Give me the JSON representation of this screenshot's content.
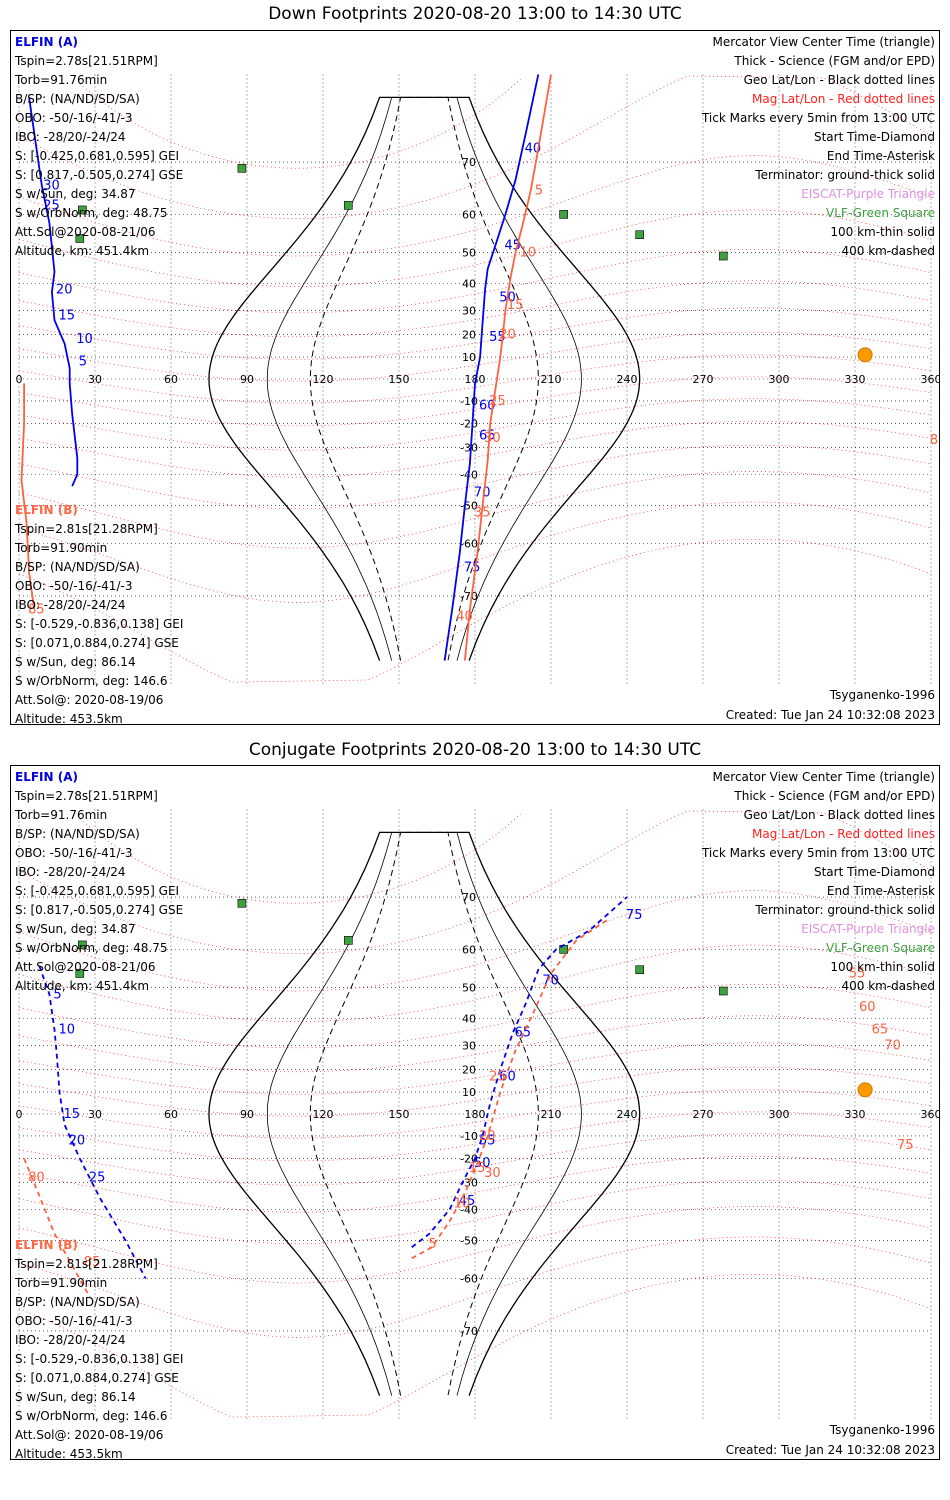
{
  "colors": {
    "elfin_a": "#0000ee",
    "elfin_b": "#ff6040",
    "mag_grid": "#ff2020",
    "geo_grid": "#000000",
    "coast": "#b0b0b0",
    "eiscat": "#e090e0",
    "vlf": "#40a040",
    "sun": "#ff9900"
  },
  "panels": [
    {
      "id": "down",
      "title": "Down Footprints 2020-08-20 13:00 to 14:30 UTC",
      "elfin_a": {
        "name": "ELFIN (A)",
        "lines": [
          "Tspin=2.78s[21.51RPM]",
          "Torb=91.76min",
          "B/SP: (NA/ND/SD/SA)",
          "OBO: -50/-16/-41/-3",
          "IBO: -28/20/-24/24",
          "S: [-0.425,0.681,0.595] GEI",
          "S: [0.817,-0.505,0.274] GSE",
          "S w/Sun, deg: 34.87",
          "S w/OrbNorm, deg: 48.75",
          "Att.Sol@2020-08-21/06",
          "Altitude, km: 451.4km"
        ]
      },
      "elfin_b": {
        "name": "ELFIN (B)",
        "lines": [
          "Tspin=2.81s[21.28RPM]",
          "Torb=91.90min",
          "B/SP: (NA/ND/SD/SA)",
          "OBO: -50/-16/-41/-3",
          "IBO: -28/20/-24/24",
          "S: [-0.529,-0.836,0.138] GEI",
          "S: [0.071,0.884,0.274] GSE",
          "S w/Sun, deg: 86.14",
          "S w/OrbNorm, deg: 146.6",
          "Att.Sol@: 2020-08-19/06",
          "Altitude: 453.5km"
        ]
      },
      "legend": [
        {
          "text": "Mercator View Center Time (triangle)",
          "color": "black"
        },
        {
          "text": "Thick - Science (FGM and/or EPD)",
          "color": "black"
        },
        {
          "text": "Geo Lat/Lon - Black dotted lines",
          "color": "black"
        },
        {
          "text": "Mag Lat/Lon - Red dotted lines",
          "color": "red"
        },
        {
          "text": "Tick Marks every 5min from 13:00 UTC",
          "color": "black"
        },
        {
          "text": "Start Time-Diamond",
          "color": "black"
        },
        {
          "text": "End Time-Asterisk",
          "color": "black"
        },
        {
          "text": "Terminator: ground-thick solid",
          "color": "black"
        },
        {
          "text": "EISCAT-Purple Triangle",
          "color": "purple"
        },
        {
          "text": "VLF-Green Square",
          "color": "green"
        },
        {
          "text": "100 km-thin solid",
          "color": "black"
        },
        {
          "text": "400 km-dashed",
          "color": "black"
        }
      ],
      "model": "Tsyganenko-1996",
      "created": "Created: Tue Jan 24 10:32:08 2023"
    },
    {
      "id": "conjugate",
      "title": "Conjugate Footprints 2020-08-20 13:00 to 14:30 UTC",
      "elfin_a": {
        "name": "ELFIN (A)",
        "lines": [
          "Tspin=2.78s[21.51RPM]",
          "Torb=91.76min",
          "B/SP: (NA/ND/SD/SA)",
          "OBO: -50/-16/-41/-3",
          "IBO: -28/20/-24/24",
          "S: [-0.425,0.681,0.595] GEI",
          "S: [0.817,-0.505,0.274] GSE",
          "S w/Sun, deg: 34.87",
          "S w/OrbNorm, deg: 48.75",
          "Att.Sol@2020-08-21/06",
          "Altitude, km: 451.4km"
        ]
      },
      "elfin_b": {
        "name": "ELFIN (B)",
        "lines": [
          "Tspin=2.81s[21.28RPM]",
          "Torb=91.90min",
          "B/SP: (NA/ND/SD/SA)",
          "OBO: -50/-16/-41/-3",
          "IBO: -28/20/-24/24",
          "S: [-0.529,-0.836,0.138] GEI",
          "S: [0.071,0.884,0.274] GSE",
          "S w/Sun, deg: 86.14",
          "S w/OrbNorm, deg: 146.6",
          "Att.Sol@: 2020-08-19/06",
          "Altitude: 453.5km"
        ]
      },
      "legend": [
        {
          "text": "Mercator View Center Time (triangle)",
          "color": "black"
        },
        {
          "text": "Thick - Science (FGM and/or EPD)",
          "color": "black"
        },
        {
          "text": "Geo Lat/Lon - Black dotted lines",
          "color": "black"
        },
        {
          "text": "Mag Lat/Lon - Red dotted lines",
          "color": "red"
        },
        {
          "text": "Tick Marks every 5min from 13:00 UTC",
          "color": "black"
        },
        {
          "text": "Start Time-Diamond",
          "color": "black"
        },
        {
          "text": "End Time-Asterisk",
          "color": "black"
        },
        {
          "text": "Terminator: ground-thick solid",
          "color": "black"
        },
        {
          "text": "EISCAT-Purple Triangle",
          "color": "purple"
        },
        {
          "text": "VLF-Green Square",
          "color": "green"
        },
        {
          "text": "100 km-thin solid",
          "color": "black"
        },
        {
          "text": "400 km-dashed",
          "color": "black"
        }
      ],
      "model": "Tsyganenko-1996",
      "created": "Created: Tue Jan 24 10:32:08 2023"
    }
  ],
  "chart_data": [
    {
      "type": "scatter",
      "title": "Down Footprints 2020-08-20 13:00 to 14:30 UTC",
      "xlabel": "",
      "ylabel": "",
      "xlim": [
        0,
        360
      ],
      "ylim": [
        -80,
        80
      ],
      "x_ticks": [
        0,
        30,
        60,
        90,
        120,
        150,
        180,
        210,
        240,
        270,
        300,
        330,
        360
      ],
      "y_ticks": [
        -70,
        -60,
        -50,
        -40,
        -30,
        -20,
        -10,
        10,
        20,
        30,
        40,
        50,
        60,
        70
      ],
      "grid": true,
      "projection": "mercator",
      "sun": [
        334,
        11
      ],
      "vlf_stations": [
        [
          88,
          69
        ],
        [
          25,
          61
        ],
        [
          24,
          54
        ],
        [
          130,
          62
        ],
        [
          215,
          60
        ],
        [
          245,
          55
        ],
        [
          278,
          49
        ]
      ],
      "series": [
        {
          "name": "ELFIN (A)",
          "track": [
            [
              4,
              78
            ],
            [
              9,
              66
            ],
            [
              12,
              58
            ],
            [
              14,
              44
            ],
            [
              13,
              37
            ],
            [
              14,
              26
            ],
            [
              18,
              16
            ],
            [
              20,
              5
            ],
            [
              20,
              -2
            ],
            [
              21,
              -16
            ],
            [
              23,
              -34
            ],
            [
              23,
              -40
            ],
            [
              21,
              -44
            ]
          ],
          "ticks": [
            [
              30,
              8,
              66
            ],
            [
              25,
              8,
              62
            ],
            [
              20,
              13,
              38
            ],
            [
              15,
              14,
              28
            ],
            [
              10,
              21,
              18
            ],
            [
              5,
              22,
              8
            ]
          ]
        },
        {
          "name": "ELFIN (B)",
          "track": [
            [
              2,
              -2
            ],
            [
              2,
              -20
            ],
            [
              1,
              -42
            ],
            [
              3,
              -55
            ],
            [
              4,
              -66
            ],
            [
              6,
              -72
            ]
          ],
          "ticks": [
            [
              80,
              358,
              -27
            ],
            [
              85,
              2,
              -72
            ]
          ]
        },
        {
          "name": "ELFIN (A) 2nd pass",
          "track": [
            [
              205,
              80
            ],
            [
              200,
              74
            ],
            [
              196,
              67
            ],
            [
              192,
              60
            ],
            [
              188,
              52
            ],
            [
              185,
              45
            ],
            [
              184,
              38
            ],
            [
              183,
              25
            ],
            [
              182,
              10
            ],
            [
              180,
              -2
            ],
            [
              179,
              -20
            ],
            [
              178,
              -36
            ],
            [
              176,
              -50
            ],
            [
              174,
              -62
            ],
            [
              171,
              -72
            ],
            [
              168,
              -78
            ]
          ],
          "ticks": [
            [
              40,
              198,
              72
            ],
            [
              45,
              190,
              52
            ],
            [
              50,
              188,
              35
            ],
            [
              55,
              184,
              19
            ],
            [
              60,
              180,
              -12
            ],
            [
              65,
              180,
              -25
            ],
            [
              70,
              178,
              -46
            ],
            [
              75,
              174,
              -65
            ]
          ]
        },
        {
          "name": "ELFIN (B) 2nd pass",
          "track": [
            [
              210,
              80
            ],
            [
              205,
              72
            ],
            [
              202,
              65
            ],
            [
              199,
              58
            ],
            [
              196,
              50
            ],
            [
              194,
              42
            ],
            [
              192,
              30
            ],
            [
              191,
              20
            ],
            [
              190,
              10
            ],
            [
              188,
              -5
            ],
            [
              186,
              -20
            ],
            [
              185,
              -35
            ],
            [
              183,
              -50
            ],
            [
              181,
              -62
            ],
            [
              178,
              -72
            ],
            [
              176,
              -78
            ]
          ],
          "ticks": [
            [
              5,
              202,
              65
            ],
            [
              10,
              196,
              50
            ],
            [
              15,
              191,
              32
            ],
            [
              20,
              188,
              20
            ],
            [
              25,
              184,
              -10
            ],
            [
              30,
              182,
              -26
            ],
            [
              35,
              178,
              -52
            ],
            [
              40,
              171,
              -73
            ]
          ]
        }
      ]
    },
    {
      "type": "scatter",
      "title": "Conjugate Footprints 2020-08-20 13:00 to 14:30 UTC",
      "xlabel": "",
      "ylabel": "",
      "xlim": [
        0,
        360
      ],
      "ylim": [
        -80,
        80
      ],
      "x_ticks": [
        0,
        30,
        60,
        90,
        120,
        150,
        180,
        210,
        240,
        270,
        300,
        330,
        360
      ],
      "y_ticks": [
        -70,
        -60,
        -50,
        -40,
        -30,
        -20,
        -10,
        10,
        20,
        30,
        40,
        50,
        60,
        70
      ],
      "grid": true,
      "projection": "mercator",
      "sun": [
        334,
        11
      ],
      "vlf_stations": [
        [
          88,
          69
        ],
        [
          25,
          61
        ],
        [
          24,
          54
        ],
        [
          130,
          62
        ],
        [
          215,
          60
        ],
        [
          245,
          55
        ],
        [
          278,
          49
        ]
      ],
      "series": [
        {
          "name": "ELFIN (A)",
          "track": [
            [
              8,
              56
            ],
            [
              12,
              48
            ],
            [
              14,
              36
            ],
            [
              15,
              25
            ],
            [
              16,
              10
            ],
            [
              18,
              -5
            ],
            [
              24,
              -20
            ],
            [
              32,
              -36
            ],
            [
              42,
              -50
            ],
            [
              50,
              -60
            ]
          ],
          "ticks": [
            [
              5,
              12,
              48
            ],
            [
              10,
              14,
              36
            ],
            [
              15,
              16,
              0
            ],
            [
              20,
              18,
              -12
            ],
            [
              25,
              26,
              -28
            ]
          ]
        },
        {
          "name": "ELFIN (B)",
          "track": [
            [
              2,
              -20
            ],
            [
              8,
              -35
            ],
            [
              14,
              -48
            ],
            [
              22,
              -58
            ],
            [
              28,
              -64
            ]
          ],
          "ticks": [
            [
              80,
              2,
              -28
            ],
            [
              85,
              24,
              -56
            ]
          ]
        },
        {
          "name": "ELFIN (A) 2nd pass",
          "track": [
            [
              155,
              -52
            ],
            [
              162,
              -48
            ],
            [
              170,
              -40
            ],
            [
              175,
              -30
            ],
            [
              180,
              -20
            ],
            [
              183,
              -10
            ],
            [
              186,
              5
            ],
            [
              190,
              20
            ],
            [
              195,
              35
            ],
            [
              200,
              45
            ],
            [
              205,
              55
            ],
            [
              212,
              60
            ],
            [
              225,
              64
            ],
            [
              240,
              70
            ]
          ],
          "ticks": [
            [
              45,
              172,
              -37
            ],
            [
              50,
              178,
              -22
            ],
            [
              55,
              180,
              -12
            ],
            [
              60,
              188,
              17
            ],
            [
              65,
              194,
              35
            ],
            [
              70,
              205,
              52
            ],
            [
              75,
              238,
              67
            ]
          ]
        },
        {
          "name": "ELFIN (B) 2nd pass",
          "track": [
            [
              155,
              -55
            ],
            [
              163,
              -52
            ],
            [
              170,
              -44
            ],
            [
              176,
              -34
            ],
            [
              181,
              -22
            ],
            [
              185,
              -10
            ],
            [
              190,
              10
            ],
            [
              196,
              28
            ],
            [
              203,
              42
            ],
            [
              210,
              54
            ],
            [
              220,
              62
            ],
            [
              232,
              66
            ]
          ],
          "ticks": [
            [
              5,
              160,
              -51
            ],
            [
              10,
              170,
              -38
            ],
            [
              15,
              176,
              -24
            ],
            [
              20,
              180,
              -10
            ],
            [
              25,
              184,
              17
            ],
            [
              30,
              182,
              -26
            ],
            [
              55,
              326,
              54
            ],
            [
              60,
              330,
              44
            ],
            [
              65,
              335,
              36
            ],
            [
              70,
              340,
              30
            ],
            [
              75,
              345,
              -14
            ]
          ]
        }
      ]
    }
  ]
}
